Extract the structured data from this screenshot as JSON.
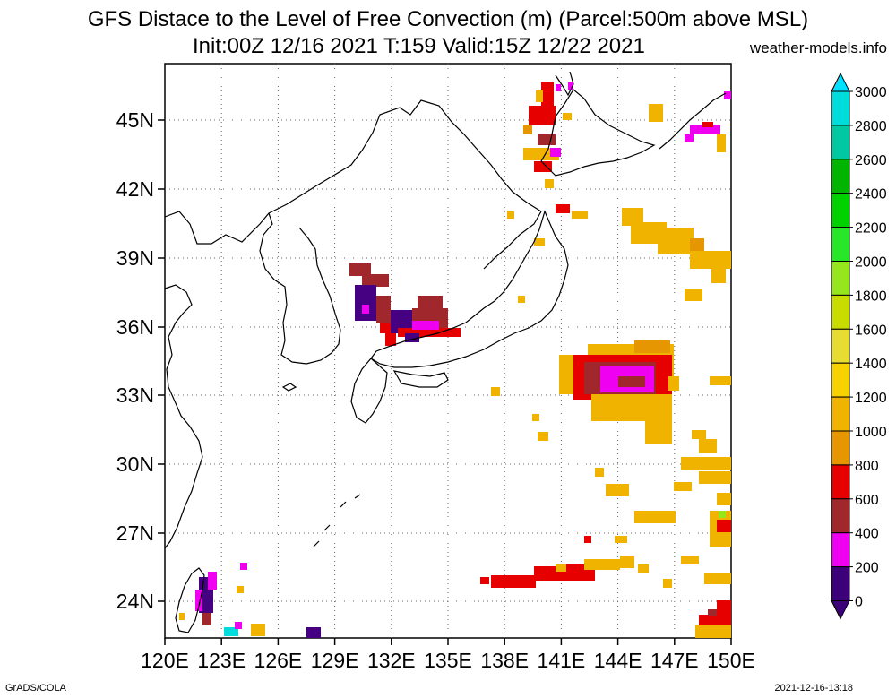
{
  "header": {
    "title_line1": "GFS Distace to the Level of Free Convection (m) (Parcel:500m above MSL)",
    "title_line2": "Init:00Z 12/16 2021 T:159 Valid:15Z 12/22 2021",
    "site": "weather-models.info"
  },
  "footer": {
    "left": "GrADS/COLA",
    "right": "2021-12-16-13:18"
  },
  "map": {
    "lat_labels": [
      "45N",
      "42N",
      "39N",
      "36N",
      "33N",
      "30N",
      "27N",
      "24N"
    ],
    "lon_labels": [
      "120E",
      "123E",
      "126E",
      "129E",
      "132E",
      "135E",
      "138E",
      "141E",
      "144E",
      "147E",
      "150E"
    ]
  },
  "colorbar": {
    "labels": [
      "3000",
      "2800",
      "2600",
      "2400",
      "2200",
      "2000",
      "1800",
      "1600",
      "1400",
      "1200",
      "1000",
      "800",
      "600",
      "400",
      "200",
      "0"
    ],
    "colors": [
      "#1e3cff",
      "#00dcdc",
      "#00c8a0",
      "#00b400",
      "#00d200",
      "#28e628",
      "#96e61e",
      "#c8dc00",
      "#e6dc32",
      "#e6c800",
      "#f0b400",
      "#f0a000",
      "#e68200",
      "#e60000",
      "#a0282d",
      "#ff00ff",
      "#460082"
    ],
    "top_arrow_color": "#00e0ff",
    "bottom_arrow_color": "#3c0078"
  },
  "legend_colors": {
    "0-200": "#3c0078",
    "200-400": "#f000f0",
    "400-600": "#a0282d",
    "600-800": "#e60000",
    "800-1000": "#e69600",
    "1000-1200": "#f0b400",
    "1200-1400": "#f5d200",
    "1400-1600": "#e6dc32",
    "1600-1800": "#c8dc00",
    "1800-2000": "#96e61e",
    "2000-2200": "#28e628",
    "2200-2400": "#00d200",
    "2400-2600": "#00b400",
    "2600-2800": "#00c8a0",
    "2800-3000": "#00dcdc"
  }
}
